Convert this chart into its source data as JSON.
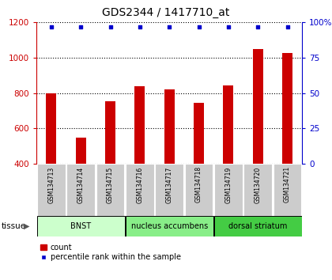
{
  "title": "GDS2344 / 1417710_at",
  "samples": [
    "GSM134713",
    "GSM134714",
    "GSM134715",
    "GSM134716",
    "GSM134717",
    "GSM134718",
    "GSM134719",
    "GSM134720",
    "GSM134721"
  ],
  "counts": [
    800,
    550,
    755,
    840,
    820,
    745,
    845,
    1050,
    1025
  ],
  "percentiles": [
    100,
    100,
    100,
    100,
    100,
    100,
    100,
    100,
    100
  ],
  "ylim_left": [
    400,
    1200
  ],
  "ylim_right": [
    0,
    100
  ],
  "yticks_left": [
    400,
    600,
    800,
    1000,
    1200
  ],
  "yticks_right": [
    0,
    25,
    50,
    75,
    100
  ],
  "bar_color": "#cc0000",
  "dot_color": "#0000cc",
  "bar_width": 0.35,
  "tissue_groups": [
    {
      "label": "BNST",
      "start": 0,
      "end": 3,
      "color": "#ccffcc"
    },
    {
      "label": "nucleus accumbens",
      "start": 3,
      "end": 6,
      "color": "#88ee88"
    },
    {
      "label": "dorsal striatum",
      "start": 6,
      "end": 9,
      "color": "#44cc44"
    }
  ],
  "tissue_label": "tissue",
  "legend_count": "count",
  "legend_percentile": "percentile rank within the sample",
  "background_color": "#ffffff",
  "sample_box_color": "#cccccc",
  "grid_color": "#000000",
  "left_axis_color": "#cc0000",
  "right_axis_color": "#0000cc"
}
